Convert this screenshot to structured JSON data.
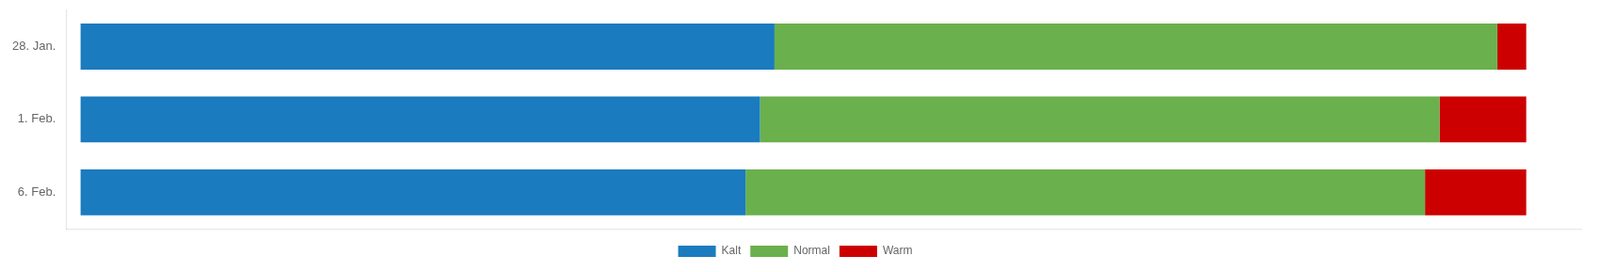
{
  "chart_data": {
    "type": "bar",
    "orientation": "horizontal",
    "stacked": true,
    "categories": [
      "28. Jan.",
      "1. Feb.",
      "6. Feb."
    ],
    "series": [
      {
        "name": "Kalt",
        "color": "#1a7bbf",
        "values": [
          48,
          47,
          46
        ]
      },
      {
        "name": "Normal",
        "color": "#6ab04c",
        "values": [
          50,
          47,
          47
        ]
      },
      {
        "name": "Warm",
        "color": "#cc0000",
        "values": [
          2,
          6,
          7
        ]
      }
    ],
    "xlim": [
      -1,
      103.8
    ],
    "xticks": [],
    "grid": false,
    "legend": "bottom",
    "tick_labels": "y"
  }
}
